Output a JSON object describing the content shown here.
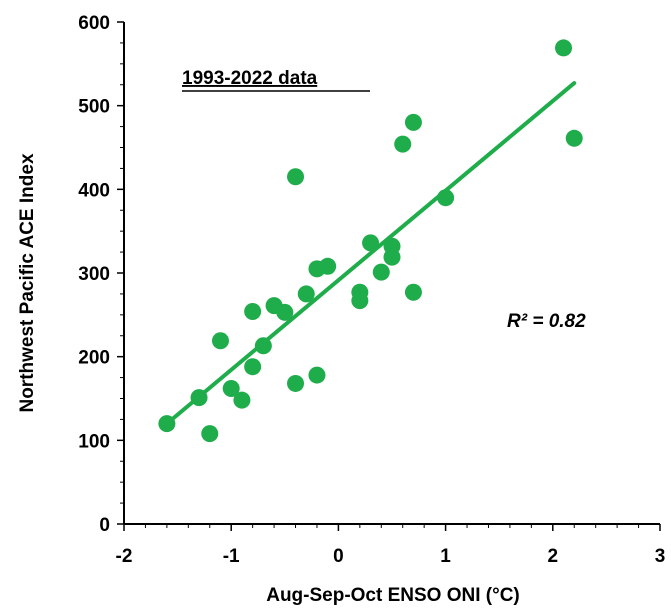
{
  "chart_data": {
    "type": "scatter",
    "annotation": "1993-2022 data",
    "r2_label": "R² = 0.82",
    "xlabel": "Aug-Sep-Oct ENSO ONI (°C)",
    "ylabel": "Northwest Pacific ACE Index",
    "xlim": [
      -2,
      3
    ],
    "ylim": [
      0,
      600
    ],
    "xticks": [
      -2,
      -1,
      0,
      1,
      2,
      3
    ],
    "yticks": [
      0,
      100,
      200,
      300,
      400,
      500,
      600
    ],
    "grid": false,
    "legend": "none",
    "point_color": "#1fad4b",
    "line_color": "#1fad4b",
    "points": [
      {
        "x": -1.6,
        "y": 120
      },
      {
        "x": -1.3,
        "y": 151
      },
      {
        "x": -1.2,
        "y": 108
      },
      {
        "x": -1.1,
        "y": 219
      },
      {
        "x": -1.0,
        "y": 162
      },
      {
        "x": -0.9,
        "y": 148
      },
      {
        "x": -0.8,
        "y": 254
      },
      {
        "x": -0.8,
        "y": 188
      },
      {
        "x": -0.7,
        "y": 213
      },
      {
        "x": -0.6,
        "y": 261
      },
      {
        "x": -0.5,
        "y": 253
      },
      {
        "x": -0.4,
        "y": 415
      },
      {
        "x": -0.4,
        "y": 168
      },
      {
        "x": -0.3,
        "y": 275
      },
      {
        "x": -0.2,
        "y": 305
      },
      {
        "x": -0.2,
        "y": 178
      },
      {
        "x": -0.1,
        "y": 308
      },
      {
        "x": 0.2,
        "y": 277
      },
      {
        "x": 0.2,
        "y": 267
      },
      {
        "x": 0.3,
        "y": 336
      },
      {
        "x": 0.4,
        "y": 301
      },
      {
        "x": 0.5,
        "y": 332
      },
      {
        "x": 0.5,
        "y": 319
      },
      {
        "x": 0.6,
        "y": 454
      },
      {
        "x": 0.7,
        "y": 480
      },
      {
        "x": 0.7,
        "y": 277
      },
      {
        "x": 1.0,
        "y": 390
      },
      {
        "x": 2.1,
        "y": 569
      },
      {
        "x": 2.2,
        "y": 461
      }
    ],
    "trendline": {
      "x": [
        -1.6,
        2.2
      ],
      "y": [
        120,
        527
      ]
    }
  }
}
